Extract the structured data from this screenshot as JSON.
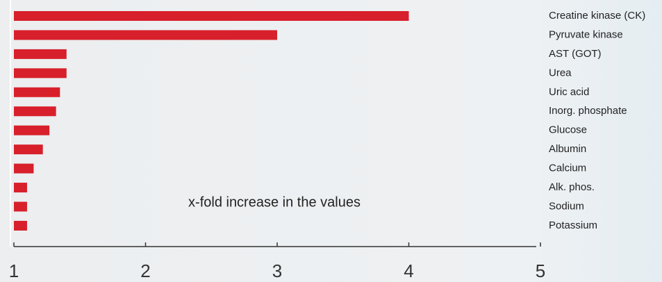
{
  "chart_data": {
    "type": "hbar",
    "annotation": "x-fold increase in the values",
    "categories": [
      "Creatine kinase (CK)",
      "Pyruvate kinase",
      "AST (GOT)",
      "Urea",
      "Uric acid",
      "Inorg. phosphate",
      "Glucose",
      "Albumin",
      "Calcium",
      "Alk. phos.",
      "Sodium",
      "Potassium"
    ],
    "values": [
      4.0,
      3.0,
      1.4,
      1.4,
      1.35,
      1.32,
      1.27,
      1.22,
      1.15,
      1.1,
      1.1,
      1.1
    ],
    "color": "#d7202b",
    "xlim": [
      1,
      5
    ],
    "xticks": [
      1,
      2,
      3,
      4,
      5
    ]
  }
}
